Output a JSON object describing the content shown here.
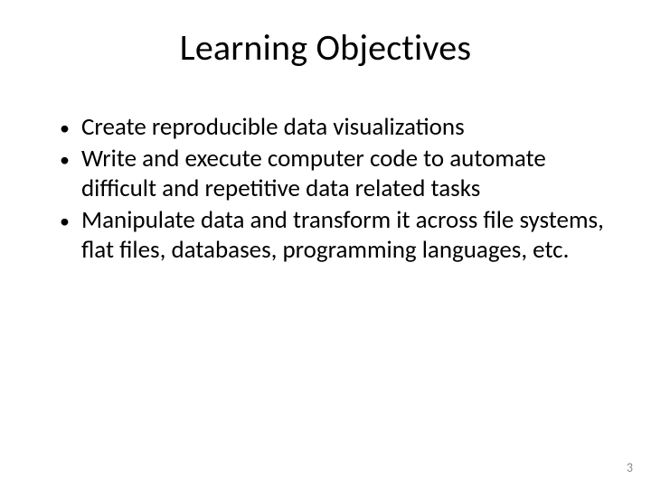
{
  "slide": {
    "title": "Learning Objectives",
    "bullets": [
      "Create reproducible data visualizations",
      "Write and execute computer code to automate difficult and repetitive data related tasks",
      "Manipulate data and transform it across file systems, flat files, databases, programming languages, etc."
    ],
    "page_number": "3",
    "styling": {
      "background_color": "#ffffff",
      "text_color": "#000000",
      "page_number_color": "#8a8a8a",
      "title_fontsize": 40,
      "body_fontsize": 27,
      "font_family": "Calibri"
    }
  }
}
